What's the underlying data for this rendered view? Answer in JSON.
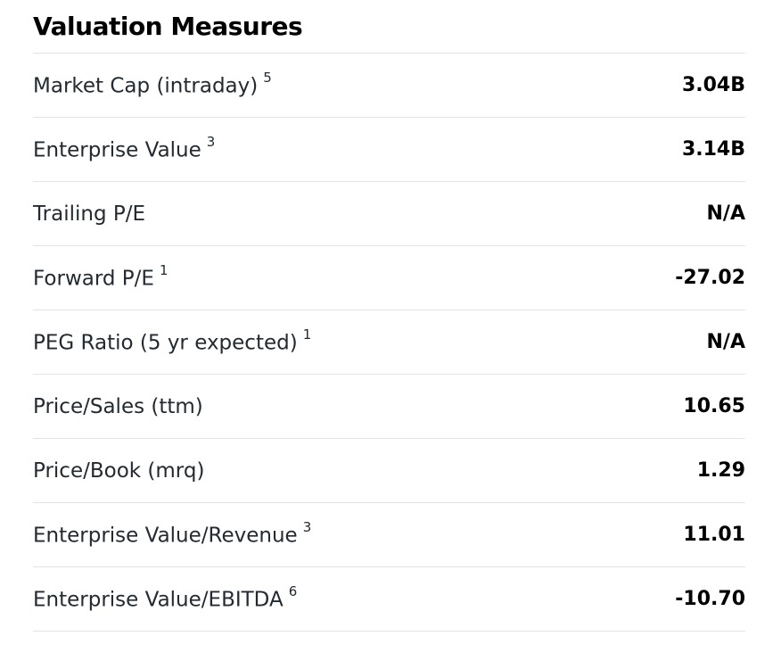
{
  "section": {
    "title": "Valuation Measures"
  },
  "rows": [
    {
      "label": "Market Cap (intraday)",
      "footnote": "5",
      "value": "3.04B"
    },
    {
      "label": "Enterprise Value",
      "footnote": "3",
      "value": "3.14B"
    },
    {
      "label": "Trailing P/E",
      "footnote": "",
      "value": "N/A"
    },
    {
      "label": "Forward P/E",
      "footnote": "1",
      "value": "-27.02"
    },
    {
      "label": "PEG Ratio (5 yr expected)",
      "footnote": "1",
      "value": "N/A"
    },
    {
      "label": "Price/Sales (ttm)",
      "footnote": "",
      "value": "10.65"
    },
    {
      "label": "Price/Book (mrq)",
      "footnote": "",
      "value": "1.29"
    },
    {
      "label": "Enterprise Value/Revenue",
      "footnote": "3",
      "value": "11.01"
    },
    {
      "label": "Enterprise Value/EBITDA",
      "footnote": "6",
      "value": "-10.70"
    }
  ]
}
